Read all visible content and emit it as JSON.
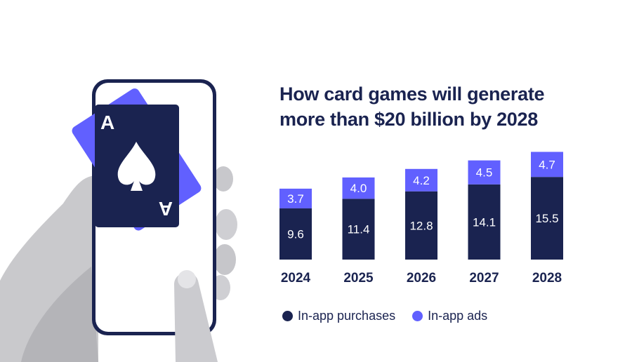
{
  "card": {
    "rank": "A"
  },
  "colors": {
    "purchases": "#1a2350",
    "ads": "#6160ff"
  },
  "chart_data": {
    "type": "bar",
    "stacked": true,
    "title": "How card games will generate more than $20 billion by 2028",
    "categories": [
      "2024",
      "2025",
      "2026",
      "2027",
      "2028"
    ],
    "series": [
      {
        "name": "In-app purchases",
        "values": [
          9.6,
          11.4,
          12.8,
          14.1,
          15.5
        ]
      },
      {
        "name": "In-app ads",
        "values": [
          3.7,
          4.0,
          4.2,
          4.5,
          4.7
        ]
      }
    ],
    "xlabel": "",
    "ylabel": "",
    "ylim": [
      0,
      21
    ],
    "legend": "bottom"
  }
}
